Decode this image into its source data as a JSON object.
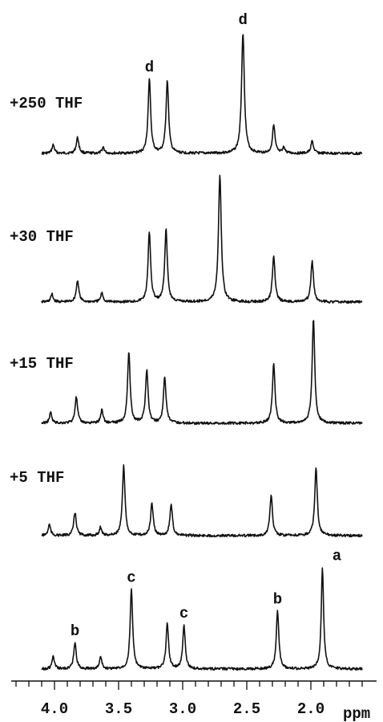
{
  "chart_data": {
    "type": "line",
    "title": "",
    "xlabel": "ppm",
    "ylabel": "",
    "xlim": [
      4.3,
      1.55
    ],
    "x_reversed": true,
    "x_ticks": [
      {
        "value": 4.0,
        "label": "4.0"
      },
      {
        "value": 3.5,
        "label": "3.5"
      },
      {
        "value": 3.0,
        "label": "3.0"
      },
      {
        "value": 2.5,
        "label": "2.5"
      },
      {
        "value": 2.0,
        "label": "2.0"
      }
    ],
    "minor_tick_step": 0.1,
    "grid": false,
    "line_color": "#111111",
    "series": [
      {
        "name": "+250 THF",
        "peaks": [
          {
            "ppm": 4.01,
            "height": 0.07,
            "width": 0.011
          },
          {
            "ppm": 3.82,
            "height": 0.13,
            "width": 0.012
          },
          {
            "ppm": 3.62,
            "height": 0.05,
            "width": 0.011
          },
          {
            "ppm": 3.26,
            "height": 0.61,
            "width": 0.012,
            "label": "d"
          },
          {
            "ppm": 3.12,
            "height": 0.6,
            "width": 0.012
          },
          {
            "ppm": 2.53,
            "height": 1.0,
            "width": 0.013,
            "label": "d"
          },
          {
            "ppm": 2.29,
            "height": 0.23,
            "width": 0.012
          },
          {
            "ppm": 2.21,
            "height": 0.05,
            "width": 0.01
          },
          {
            "ppm": 1.99,
            "height": 0.1,
            "width": 0.012
          }
        ]
      },
      {
        "name": "+30 THF",
        "peaks": [
          {
            "ppm": 4.02,
            "height": 0.06,
            "width": 0.011
          },
          {
            "ppm": 3.82,
            "height": 0.17,
            "width": 0.012
          },
          {
            "ppm": 3.63,
            "height": 0.07,
            "width": 0.011
          },
          {
            "ppm": 3.26,
            "height": 0.55,
            "width": 0.012
          },
          {
            "ppm": 3.13,
            "height": 0.57,
            "width": 0.012
          },
          {
            "ppm": 2.71,
            "height": 1.0,
            "width": 0.013
          },
          {
            "ppm": 2.29,
            "height": 0.37,
            "width": 0.012
          },
          {
            "ppm": 1.99,
            "height": 0.32,
            "width": 0.012
          }
        ]
      },
      {
        "name": "+15 THF",
        "peaks": [
          {
            "ppm": 4.03,
            "height": 0.1,
            "width": 0.011
          },
          {
            "ppm": 3.83,
            "height": 0.25,
            "width": 0.012
          },
          {
            "ppm": 3.63,
            "height": 0.13,
            "width": 0.011
          },
          {
            "ppm": 3.42,
            "height": 0.68,
            "width": 0.012
          },
          {
            "ppm": 3.28,
            "height": 0.51,
            "width": 0.012
          },
          {
            "ppm": 3.14,
            "height": 0.44,
            "width": 0.012
          },
          {
            "ppm": 2.29,
            "height": 0.57,
            "width": 0.012
          },
          {
            "ppm": 1.98,
            "height": 1.0,
            "width": 0.012
          }
        ]
      },
      {
        "name": "+5 THF",
        "peaks": [
          {
            "ppm": 4.04,
            "height": 0.13,
            "width": 0.011
          },
          {
            "ppm": 3.84,
            "height": 0.27,
            "width": 0.012
          },
          {
            "ppm": 3.64,
            "height": 0.1,
            "width": 0.011
          },
          {
            "ppm": 3.46,
            "height": 0.81,
            "width": 0.012
          },
          {
            "ppm": 3.24,
            "height": 0.37,
            "width": 0.012
          },
          {
            "ppm": 3.09,
            "height": 0.36,
            "width": 0.012
          },
          {
            "ppm": 2.31,
            "height": 0.47,
            "width": 0.012
          },
          {
            "ppm": 1.96,
            "height": 0.79,
            "width": 0.012
          }
        ]
      },
      {
        "name": "",
        "peaks": [
          {
            "ppm": 4.01,
            "height": 0.12,
            "width": 0.011
          },
          {
            "ppm": 3.84,
            "height": 0.25,
            "width": 0.012,
            "label": "b"
          },
          {
            "ppm": 3.64,
            "height": 0.12,
            "width": 0.011
          },
          {
            "ppm": 3.4,
            "height": 0.77,
            "width": 0.012,
            "label": "c"
          },
          {
            "ppm": 3.12,
            "height": 0.44,
            "width": 0.012
          },
          {
            "ppm": 2.99,
            "height": 0.42,
            "width": 0.012,
            "label": "c"
          },
          {
            "ppm": 2.26,
            "height": 0.56,
            "width": 0.012,
            "label": "b"
          },
          {
            "ppm": 1.91,
            "height": 0.98,
            "width": 0.011,
            "label": "a"
          }
        ]
      }
    ]
  }
}
